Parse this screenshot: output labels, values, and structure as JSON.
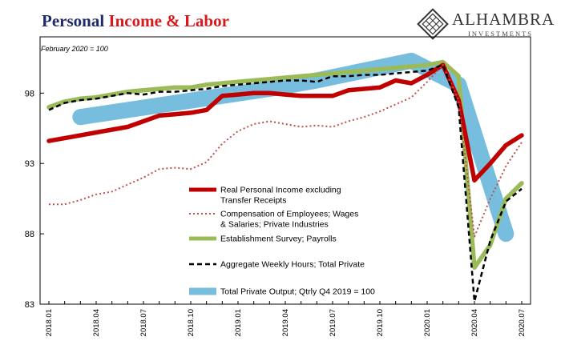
{
  "title": {
    "part1": "Personal",
    "part2": "Income & Labor"
  },
  "note": "February 2020 = 100",
  "brand": {
    "name": "ALHAMBRA",
    "sub": "INVESTMENTS"
  },
  "chart_data": {
    "type": "line",
    "x": [
      "2018.01",
      "2018.02",
      "2018.03",
      "2018.04",
      "2018.05",
      "2018.06",
      "2018.07",
      "2018.08",
      "2018.09",
      "2018.10",
      "2018.11",
      "2018.12",
      "2019.01",
      "2019.02",
      "2019.03",
      "2019.04",
      "2019.05",
      "2019.06",
      "2019.07",
      "2019.08",
      "2019.09",
      "2019.10",
      "2019.11",
      "2019.12",
      "2020.01",
      "2020.02",
      "2020.03",
      "2020.04",
      "2020.05",
      "2020.06",
      "2020.07"
    ],
    "x_tick_labels": [
      "2018.01",
      "2018.04",
      "2018.07",
      "2018.10",
      "2019.01",
      "2019.04",
      "2019.07",
      "2019.10",
      "2020.01",
      "2020.04",
      "2020.07"
    ],
    "ylim": [
      83,
      102
    ],
    "y_ticks": [
      83,
      88,
      93,
      98
    ],
    "y_tick_labels": [
      "83",
      "88",
      "93",
      "98"
    ],
    "grid": false,
    "legend_position": "center",
    "series": [
      {
        "name": "Real Personal Income excluding Transfer Receipts",
        "color": "#c00000",
        "style": "solid-thick",
        "values": [
          94.6,
          94.8,
          95.0,
          95.2,
          95.4,
          95.6,
          96.0,
          96.4,
          96.5,
          96.6,
          96.8,
          97.8,
          97.9,
          98.0,
          98.0,
          97.9,
          97.8,
          97.8,
          97.8,
          98.2,
          98.3,
          98.4,
          98.9,
          98.7,
          99.3,
          100.0,
          97.5,
          91.8,
          93.0,
          94.3,
          95.0
        ]
      },
      {
        "name": "Compensation of Employees; Wages & Salaries; Private Industries",
        "color": "#c0504d",
        "style": "dotted",
        "values": [
          90.1,
          90.1,
          90.4,
          90.8,
          91.0,
          91.5,
          92.0,
          92.6,
          92.7,
          92.6,
          93.1,
          94.4,
          95.3,
          95.8,
          96.0,
          95.8,
          95.6,
          95.7,
          95.6,
          96.0,
          96.3,
          96.7,
          97.2,
          97.7,
          98.8,
          100.0,
          97.5,
          87.8,
          90.5,
          92.8,
          94.5
        ]
      },
      {
        "name": "Establishment Survey; Payrolls",
        "color": "#9bbb59",
        "style": "solid-thick",
        "values": [
          97.0,
          97.4,
          97.6,
          97.7,
          97.9,
          98.1,
          98.2,
          98.3,
          98.4,
          98.4,
          98.6,
          98.7,
          98.8,
          98.9,
          99.0,
          99.1,
          99.2,
          99.3,
          99.4,
          99.5,
          99.6,
          99.7,
          99.8,
          99.9,
          100.0,
          100.2,
          99.2,
          85.6,
          87.2,
          90.5,
          91.6
        ]
      },
      {
        "name": "Aggregate Weekly Hours; Total Private",
        "color": "#000000",
        "style": "dashed",
        "values": [
          96.8,
          97.3,
          97.5,
          97.6,
          97.8,
          98.0,
          97.9,
          98.1,
          98.1,
          98.2,
          98.3,
          98.5,
          98.6,
          98.7,
          98.8,
          98.9,
          98.9,
          98.8,
          99.2,
          99.2,
          99.3,
          99.3,
          99.4,
          99.5,
          99.6,
          100.0,
          97.0,
          83.2,
          87.5,
          90.3,
          91.2
        ]
      },
      {
        "name": "Total Private Output; Qtrly Q4 2019 = 100",
        "color": "#5fb3d8",
        "style": "band",
        "x": [
          "2018.03",
          "2018.06",
          "2018.09",
          "2018.12",
          "2019.03",
          "2019.06",
          "2019.09",
          "2019.12",
          "2020.03",
          "2020.06"
        ],
        "values": [
          96.3,
          96.8,
          97.3,
          97.8,
          98.3,
          98.9,
          99.6,
          100.3,
          98.6,
          88.0
        ]
      }
    ]
  }
}
